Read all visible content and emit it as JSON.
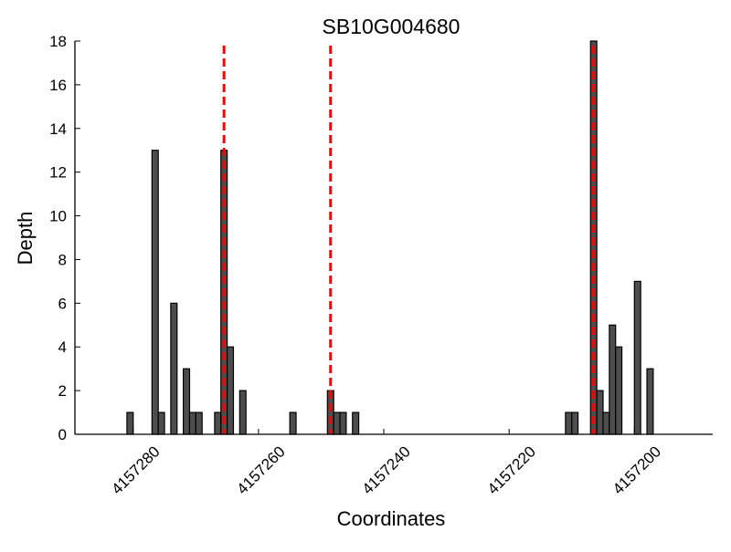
{
  "chart_data": {
    "type": "bar",
    "title": "SB10G004680",
    "xlabel": "Coordinates",
    "ylabel": "Depth",
    "x_reversed": true,
    "xlim": [
      4157289.3,
      4157187.5
    ],
    "ylim": [
      0,
      18
    ],
    "xticks": [
      4157280,
      4157260,
      4157240,
      4157220,
      4157200
    ],
    "yticks": [
      0,
      2,
      4,
      6,
      8,
      10,
      12,
      14,
      16,
      18
    ],
    "grid": false,
    "bar_color": "#4d4d4d",
    "bars": [
      {
        "x": 4157280,
        "y": 1
      },
      {
        "x": 4157276,
        "y": 13
      },
      {
        "x": 4157275,
        "y": 1
      },
      {
        "x": 4157273,
        "y": 6
      },
      {
        "x": 4157271,
        "y": 3
      },
      {
        "x": 4157270,
        "y": 1
      },
      {
        "x": 4157269,
        "y": 1
      },
      {
        "x": 4157266,
        "y": 1
      },
      {
        "x": 4157265,
        "y": 13
      },
      {
        "x": 4157264,
        "y": 4
      },
      {
        "x": 4157262,
        "y": 2
      },
      {
        "x": 4157254,
        "y": 1
      },
      {
        "x": 4157248,
        "y": 2
      },
      {
        "x": 4157247,
        "y": 1
      },
      {
        "x": 4157246,
        "y": 1
      },
      {
        "x": 4157244,
        "y": 1
      },
      {
        "x": 4157210,
        "y": 1
      },
      {
        "x": 4157209,
        "y": 1
      },
      {
        "x": 4157206,
        "y": 18
      },
      {
        "x": 4157205,
        "y": 2
      },
      {
        "x": 4157204,
        "y": 1
      },
      {
        "x": 4157203,
        "y": 5
      },
      {
        "x": 4157202,
        "y": 4
      },
      {
        "x": 4157199,
        "y": 7
      },
      {
        "x": 4157197,
        "y": 3
      }
    ],
    "vlines": {
      "color": "#ff0000",
      "style": "dashed",
      "x": [
        4157265.5,
        4157248.5,
        4157206.5
      ]
    }
  }
}
